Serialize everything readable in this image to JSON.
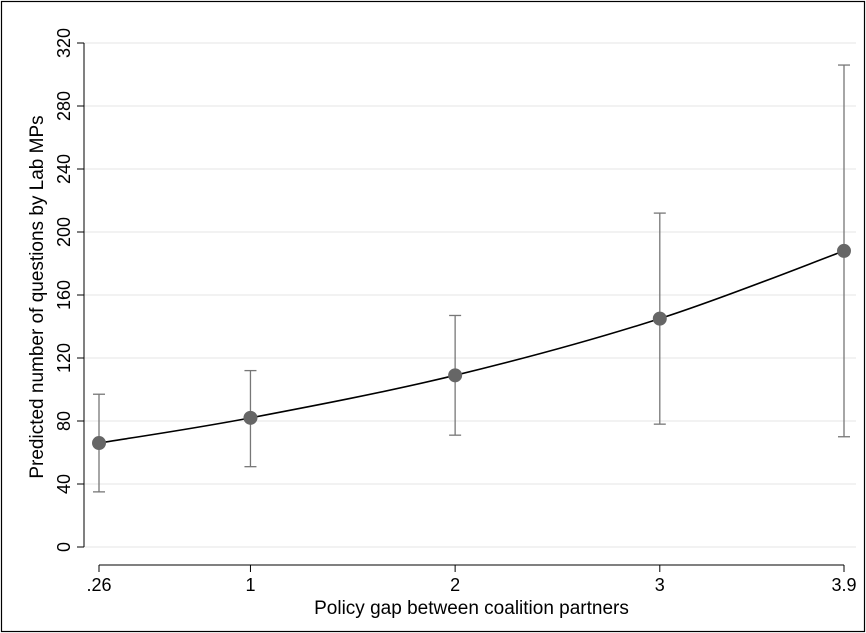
{
  "chart_data": {
    "type": "line",
    "title": "",
    "xlabel": "Policy gap between coalition partners",
    "ylabel": "Predicted number of questions by Lab MPs",
    "x_ticks": [
      {
        "value": 0.26,
        "label": ".26"
      },
      {
        "value": 1,
        "label": "1"
      },
      {
        "value": 2,
        "label": "2"
      },
      {
        "value": 3,
        "label": "3"
      },
      {
        "value": 3.9,
        "label": "3.9"
      }
    ],
    "y_ticks": [
      {
        "value": 0,
        "label": "0"
      },
      {
        "value": 40,
        "label": "40"
      },
      {
        "value": 80,
        "label": "80"
      },
      {
        "value": 120,
        "label": "120"
      },
      {
        "value": 160,
        "label": "160"
      },
      {
        "value": 200,
        "label": "200"
      },
      {
        "value": 240,
        "label": "240"
      },
      {
        "value": 280,
        "label": "280"
      },
      {
        "value": 320,
        "label": "320"
      }
    ],
    "xlim": [
      0.26,
      3.9
    ],
    "ylim": [
      0,
      320
    ],
    "grid": "horizontal",
    "series": [
      {
        "x": [
          0.26,
          1,
          2,
          3,
          3.9
        ],
        "y": [
          66,
          82,
          109,
          145,
          188
        ],
        "lower": [
          35,
          51,
          71,
          78,
          70
        ],
        "upper": [
          97,
          112,
          147,
          212,
          306
        ]
      }
    ],
    "colors": {
      "line": "#000000",
      "marker": "#666666",
      "errorbar": "#777777",
      "grid": "#e6e6e6",
      "frame": "#000000"
    }
  }
}
